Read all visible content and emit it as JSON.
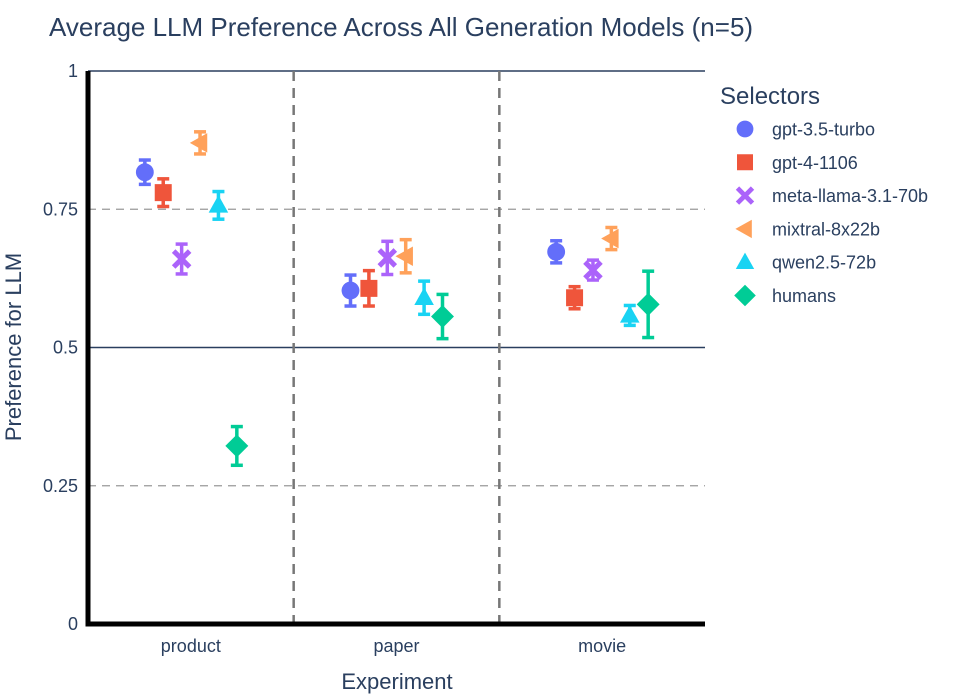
{
  "chart_data": {
    "type": "scatter",
    "title": "Average LLM Preference Across All Generation Models (n=5)",
    "xlabel": "Experiment",
    "ylabel": "Preference for LLM",
    "ylim": [
      0,
      1
    ],
    "yticks": [
      0,
      0.25,
      0.5,
      0.75,
      1
    ],
    "ytick_labels": [
      "0",
      "0.25",
      "0.5",
      "0.75",
      "1"
    ],
    "categories": [
      "product",
      "paper",
      "movie"
    ],
    "legend_title": "Selectors",
    "legend_position": "right",
    "series": [
      {
        "name": "gpt-3.5-turbo",
        "color": "#636efa",
        "marker": "circle",
        "values": [
          0.817,
          0.603,
          0.673
        ],
        "errors": [
          0.022,
          0.028,
          0.02
        ]
      },
      {
        "name": "gpt-4-1106",
        "color": "#ef553b",
        "marker": "square",
        "values": [
          0.78,
          0.607,
          0.59
        ],
        "errors": [
          0.025,
          0.032,
          0.02
        ]
      },
      {
        "name": "meta-llama-3.1-70b",
        "color": "#ab63fa",
        "marker": "x",
        "values": [
          0.66,
          0.662,
          0.64
        ],
        "errors": [
          0.027,
          0.03,
          0.018
        ]
      },
      {
        "name": "mixtral-8x22b",
        "color": "#ffa15a",
        "marker": "triangle-left",
        "values": [
          0.87,
          0.665,
          0.697
        ],
        "errors": [
          0.02,
          0.03,
          0.02
        ]
      },
      {
        "name": "qwen2.5-72b",
        "color": "#19d3f3",
        "marker": "triangle-up",
        "values": [
          0.757,
          0.59,
          0.558
        ],
        "errors": [
          0.025,
          0.03,
          0.018
        ]
      },
      {
        "name": "humans",
        "color": "#00cc96",
        "marker": "diamond",
        "values": [
          0.322,
          0.556,
          0.578
        ],
        "errors": [
          0.035,
          0.04,
          0.06
        ]
      }
    ]
  }
}
